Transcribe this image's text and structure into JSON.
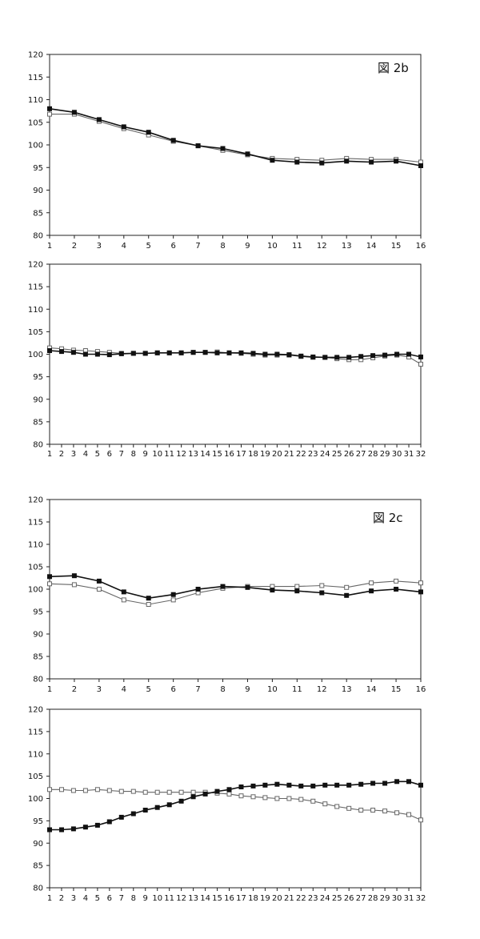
{
  "chart_data": [
    {
      "type": "line",
      "annotation": "図 2b",
      "x": [
        1,
        2,
        3,
        4,
        5,
        6,
        7,
        8,
        9,
        10,
        11,
        12,
        13,
        14,
        15,
        16
      ],
      "ylim": [
        80,
        120
      ],
      "yticks": [
        80,
        85,
        90,
        95,
        100,
        105,
        110,
        115,
        120
      ],
      "grid": false,
      "series": [
        {
          "marker": "filled-square",
          "color": "#111111",
          "values": [
            108.0,
            107.2,
            105.6,
            104.0,
            102.8,
            101.0,
            99.8,
            99.2,
            98.0,
            96.6,
            96.2,
            96.0,
            96.4,
            96.2,
            96.4,
            95.4
          ]
        },
        {
          "marker": "open-square",
          "color": "#666666",
          "values": [
            106.8,
            106.8,
            105.2,
            103.6,
            102.2,
            100.8,
            99.8,
            98.8,
            97.8,
            97.0,
            96.8,
            96.6,
            97.0,
            96.8,
            96.8,
            96.2
          ]
        }
      ]
    },
    {
      "type": "line",
      "annotation": "",
      "x": [
        1,
        2,
        3,
        4,
        5,
        6,
        7,
        8,
        9,
        10,
        11,
        12,
        13,
        14,
        15,
        16,
        17,
        18,
        19,
        20,
        21,
        22,
        23,
        24,
        25,
        26,
        27,
        28,
        29,
        30,
        31,
        32
      ],
      "ylim": [
        80,
        120
      ],
      "yticks": [
        80,
        85,
        90,
        95,
        100,
        105,
        110,
        115,
        120
      ],
      "grid": false,
      "series": [
        {
          "marker": "filled-square",
          "color": "#111111",
          "values": [
            100.8,
            100.6,
            100.4,
            100.0,
            100.0,
            99.9,
            100.1,
            100.2,
            100.2,
            100.3,
            100.3,
            100.3,
            100.4,
            100.4,
            100.3,
            100.3,
            100.3,
            100.2,
            100.0,
            100.0,
            99.9,
            99.6,
            99.4,
            99.3,
            99.3,
            99.3,
            99.5,
            99.7,
            99.8,
            100.0,
            100.0,
            99.4
          ]
        },
        {
          "marker": "open-square",
          "color": "#666666",
          "values": [
            101.4,
            101.2,
            100.9,
            100.8,
            100.6,
            100.4,
            100.2,
            100.2,
            100.2,
            100.3,
            100.3,
            100.3,
            100.4,
            100.4,
            100.5,
            100.3,
            100.2,
            100.0,
            99.8,
            99.8,
            99.8,
            99.5,
            99.3,
            99.3,
            99.0,
            98.8,
            98.8,
            99.2,
            99.6,
            99.8,
            99.4,
            97.8
          ]
        }
      ]
    },
    {
      "type": "line",
      "annotation": "図 2c",
      "x": [
        1,
        2,
        3,
        4,
        5,
        6,
        7,
        8,
        9,
        10,
        11,
        12,
        13,
        14,
        15,
        16
      ],
      "ylim": [
        80,
        120
      ],
      "yticks": [
        80,
        85,
        90,
        95,
        100,
        105,
        110,
        115,
        120
      ],
      "grid": false,
      "series": [
        {
          "marker": "filled-square",
          "color": "#111111",
          "values": [
            102.8,
            103.0,
            101.8,
            99.4,
            98.0,
            98.8,
            100.0,
            100.6,
            100.4,
            99.8,
            99.6,
            99.2,
            98.6,
            99.6,
            100.0,
            99.4
          ]
        },
        {
          "marker": "open-square",
          "color": "#666666",
          "values": [
            101.2,
            101.0,
            100.0,
            97.6,
            96.6,
            97.6,
            99.2,
            100.2,
            100.6,
            100.6,
            100.6,
            100.8,
            100.4,
            101.4,
            101.8,
            101.4
          ]
        }
      ]
    },
    {
      "type": "line",
      "annotation": "",
      "x": [
        1,
        2,
        3,
        4,
        5,
        6,
        7,
        8,
        9,
        10,
        11,
        12,
        13,
        14,
        15,
        16,
        17,
        18,
        19,
        20,
        21,
        22,
        23,
        24,
        25,
        26,
        27,
        28,
        29,
        30,
        31,
        32
      ],
      "ylim": [
        80,
        120
      ],
      "yticks": [
        80,
        85,
        90,
        95,
        100,
        105,
        110,
        115,
        120
      ],
      "grid": false,
      "series": [
        {
          "marker": "filled-square",
          "color": "#111111",
          "values": [
            93.0,
            93.0,
            93.2,
            93.6,
            94.0,
            94.8,
            95.8,
            96.6,
            97.4,
            98.0,
            98.6,
            99.4,
            100.4,
            101.0,
            101.6,
            102.0,
            102.6,
            102.8,
            103.0,
            103.2,
            103.0,
            102.8,
            102.8,
            103.0,
            103.0,
            103.0,
            103.2,
            103.4,
            103.4,
            103.8,
            103.8,
            103.0
          ]
        },
        {
          "marker": "open-square",
          "color": "#666666",
          "values": [
            102.0,
            102.0,
            101.8,
            101.8,
            102.0,
            101.8,
            101.6,
            101.6,
            101.4,
            101.4,
            101.4,
            101.4,
            101.4,
            101.4,
            101.2,
            101.0,
            100.6,
            100.4,
            100.2,
            100.0,
            100.0,
            99.8,
            99.4,
            98.8,
            98.2,
            97.8,
            97.4,
            97.4,
            97.2,
            96.8,
            96.4,
            95.2
          ]
        }
      ]
    }
  ]
}
